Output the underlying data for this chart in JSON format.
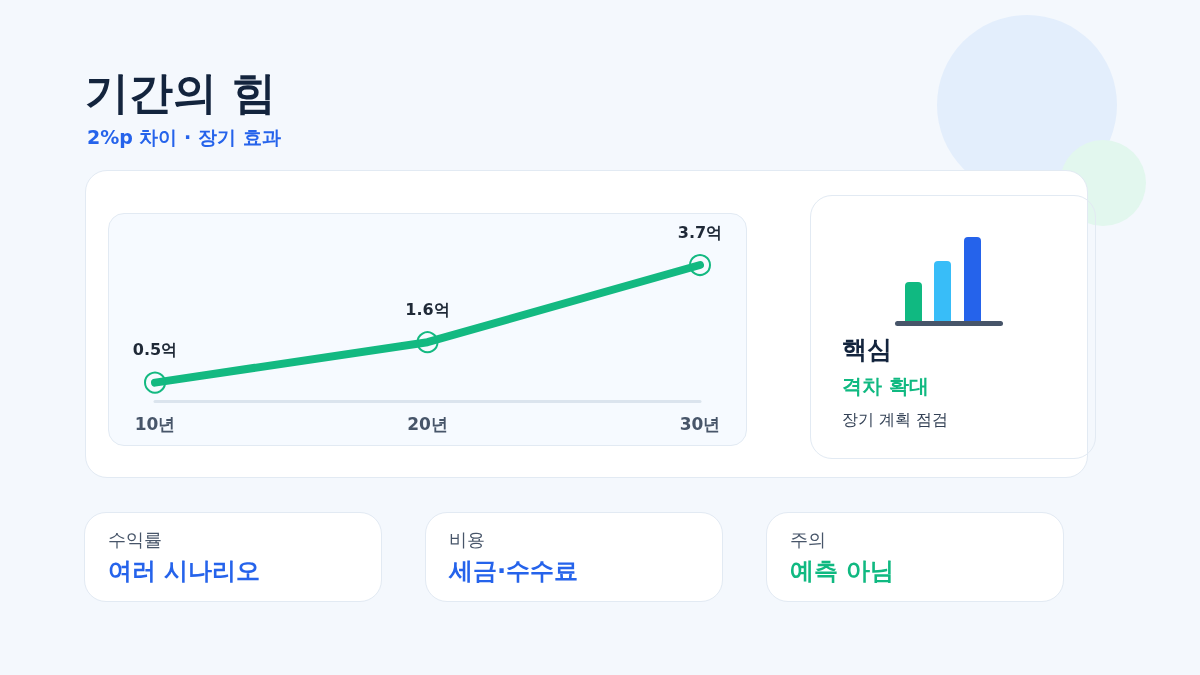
{
  "chart_data": {
    "type": "line",
    "title": "기간의 힘",
    "subtitle": "2%p 차이 · 장기 효과",
    "categories": [
      "10년",
      "20년",
      "30년"
    ],
    "values": [
      0.5,
      1.6,
      3.7
    ],
    "value_labels": [
      "0.5억",
      "1.6억",
      "3.7억"
    ],
    "color": "#13b981",
    "marker": "circle",
    "grid": false,
    "annotations": [
      "핵심",
      "격차 확대",
      "장기 계획 점검",
      "수익률",
      "여러 시나리오",
      "비용",
      "세금·수수료",
      "주의",
      "예측 아님"
    ]
  }
}
